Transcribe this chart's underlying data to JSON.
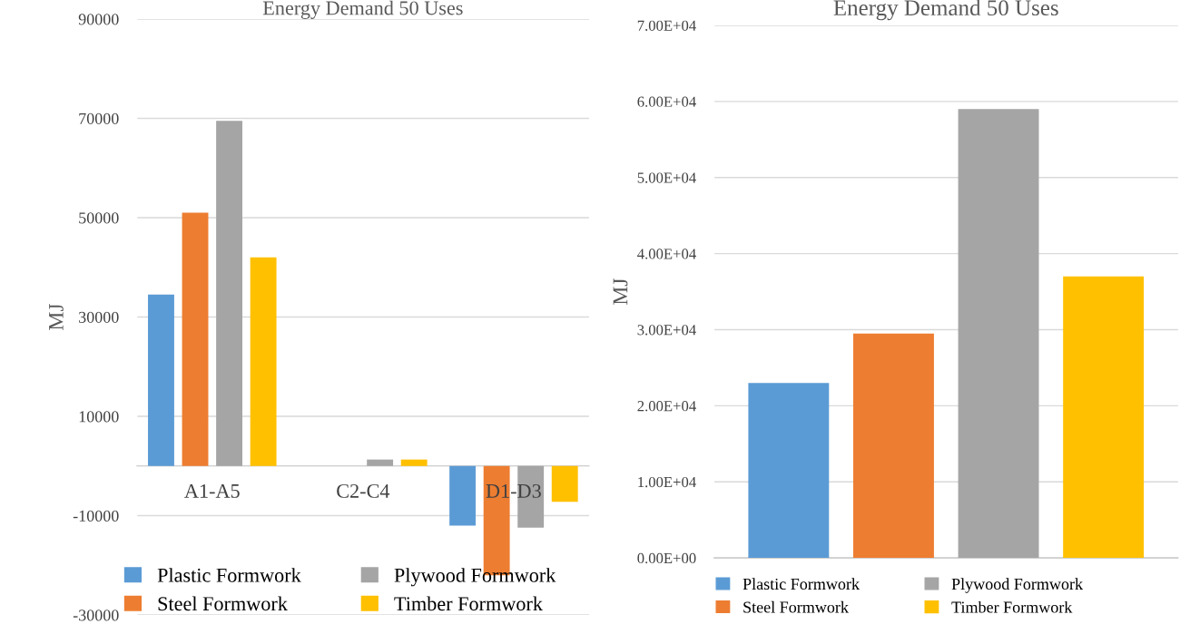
{
  "chart_data": [
    {
      "type": "bar",
      "title": "Energy Demand 50 Uses",
      "ylabel": "MJ",
      "categories": [
        "A1-A5",
        "C2-C4",
        "D1-D3"
      ],
      "series": [
        {
          "name": "Plastic Formwork",
          "color": "#5b9bd5",
          "values": [
            34500,
            0,
            -12000
          ]
        },
        {
          "name": "Steel Formwork",
          "color": "#ed7d31",
          "values": [
            51000,
            0,
            -22000
          ]
        },
        {
          "name": "Plywood Formwork",
          "color": "#a5a5a5",
          "values": [
            69500,
            1300,
            -12400
          ]
        },
        {
          "name": "Timber Formwork",
          "color": "#ffc000",
          "values": [
            42000,
            1300,
            -7200
          ]
        }
      ],
      "ylim": [
        -30000,
        90000
      ],
      "yticks": [
        -30000,
        -10000,
        10000,
        30000,
        50000,
        70000,
        90000
      ],
      "grid": "y",
      "legend": "bottom"
    },
    {
      "type": "bar",
      "title": "Energy Demand 50 Uses",
      "ylabel": "MJ",
      "categories": [
        null
      ],
      "series": [
        {
          "name": "Plastic Formwork",
          "color": "#5b9bd5",
          "values": [
            23000
          ]
        },
        {
          "name": "Steel Formwork",
          "color": "#ed7d31",
          "values": [
            29500
          ]
        },
        {
          "name": "Plywood Formwork",
          "color": "#a5a5a5",
          "values": [
            59000
          ]
        },
        {
          "name": "Timber Formwork",
          "color": "#ffc000",
          "values": [
            37000
          ]
        }
      ],
      "ylim": [
        0,
        70000
      ],
      "yticks": [
        {
          "value": 0,
          "label": "0.00E+00"
        },
        {
          "value": 10000,
          "label": "1.00E+04"
        },
        {
          "value": 20000,
          "label": "2.00E+04"
        },
        {
          "value": 30000,
          "label": "3.00E+04"
        },
        {
          "value": 40000,
          "label": "4.00E+04"
        },
        {
          "value": 50000,
          "label": "5.00E+04"
        },
        {
          "value": 60000,
          "label": "6.00E+04"
        },
        {
          "value": 70000,
          "label": "7.00E+04"
        }
      ],
      "grid": "y",
      "legend": "bottom"
    }
  ]
}
